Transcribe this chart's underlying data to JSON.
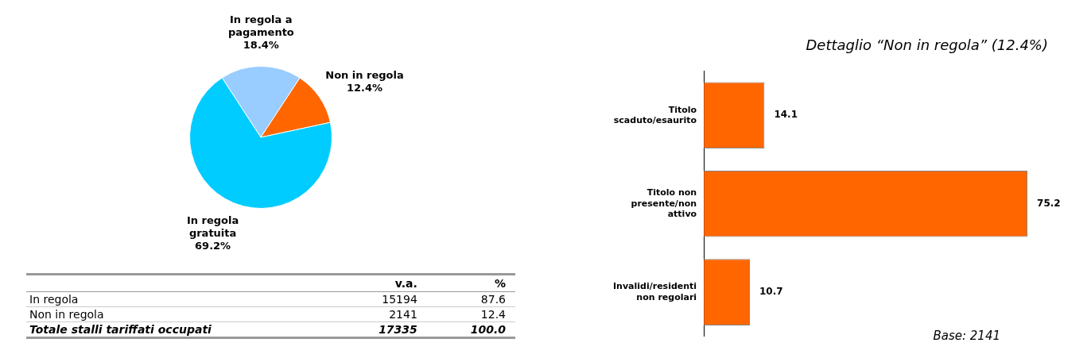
{
  "chart_data": [
    {
      "type": "pie",
      "categories": [
        "In regola a pagamento",
        "Non in regola",
        "In regola gratuita"
      ],
      "values": [
        18.4,
        12.4,
        69.2
      ],
      "colors": [
        "#99ccff",
        "#ff6600",
        "#00ccff"
      ],
      "value_labels": [
        "18.4%",
        "12.4%",
        "69.2%"
      ],
      "data_labels": true,
      "legend": false
    },
    {
      "type": "other",
      "data_labels": true,
      "categories": [
        "In regola",
        "Non in regola",
        "Totale stalli tariffati occupati"
      ],
      "series": [
        {
          "name": "v.a.",
          "values": [
            15194,
            2141,
            17335
          ]
        },
        {
          "name": "%",
          "values": [
            87.6,
            12.4,
            100.0
          ],
          "value_labels": [
            "87.6",
            "12.4",
            "100.0"
          ]
        }
      ]
    },
    {
      "type": "bar",
      "orientation": "horizontal",
      "title": "Dettaglio “Non in regola” (12.4%)",
      "categories": [
        "Titolo scaduto/esaurito",
        "Titolo non presente/non attivo",
        "Invalidi/residenti non regolari"
      ],
      "values": [
        14.1,
        75.2,
        10.7
      ],
      "color": "#ff6600",
      "data_labels": true,
      "legend": false,
      "grid": false,
      "annotations": [
        "Base: 2141"
      ]
    }
  ]
}
